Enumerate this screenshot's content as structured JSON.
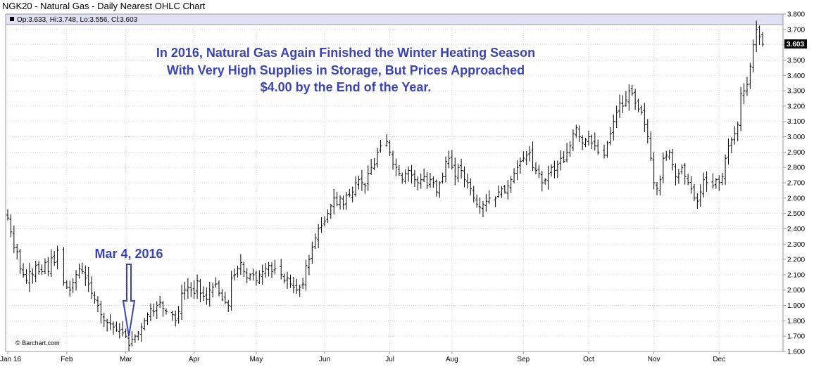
{
  "chart_title": "NGK20 - Natural Gas - Daily Nearest OHLC Chart",
  "legend": "Op:3.633, Hi:3.748, Lo:3.556, Cl:3.603",
  "last_price_label": "3.603",
  "credit": "© Barchart.com",
  "annotation": {
    "lines": [
      "In 2016, Natural Gas Again Finished the Winter Heating Season",
      "With Very High Supplies in Storage, But Prices Approached",
      "$4.00 by the End of the Year."
    ],
    "marker_label": "Mar 4, 2016"
  },
  "colors": {
    "bars": "#000000",
    "annotation": "#3a44b8",
    "header_band": "#e1e1f4",
    "grid": "#d7d7d7"
  },
  "chart_data": {
    "type": "ohlc",
    "title": "NGK20 - Natural Gas - Daily Nearest OHLC Chart",
    "ylim": [
      1.6,
      3.8
    ],
    "y_ticks": [
      "1.600",
      "1.700",
      "1.800",
      "1.900",
      "2.000",
      "2.100",
      "2.200",
      "2.300",
      "2.400",
      "2.500",
      "2.600",
      "2.700",
      "2.800",
      "2.900",
      "3.000",
      "3.100",
      "3.200",
      "3.300",
      "3.400",
      "3.500",
      "3.600",
      "3.700",
      "3.800"
    ],
    "x_ticks": [
      "Jan 16",
      "Feb",
      "Mar",
      "Apr",
      "May",
      "Jun",
      "Jul",
      "Aug",
      "Sep",
      "Oct",
      "Nov",
      "Dec"
    ],
    "month_start_index": [
      0,
      19,
      38,
      60,
      80,
      102,
      123,
      143,
      166,
      187,
      208,
      229
    ],
    "total_bars": 244,
    "closes": [
      2.47,
      2.38,
      2.28,
      2.25,
      2.14,
      2.1,
      2.06,
      2.12,
      2.1,
      2.16,
      2.12,
      2.12,
      2.18,
      2.12,
      2.21,
      2.18,
      2.26,
      2.05,
      2.02,
      2.0,
      2.05,
      2.1,
      2.14,
      2.12,
      2.08,
      2.04,
      1.98,
      1.94,
      1.9,
      1.84,
      1.8,
      1.79,
      1.78,
      1.76,
      1.74,
      1.74,
      1.72,
      1.7,
      1.64,
      1.68,
      1.7,
      1.72,
      1.76,
      1.8,
      1.84,
      1.88,
      1.86,
      1.9,
      1.92,
      1.88,
      1.86,
      1.84,
      1.8,
      1.86,
      1.98,
      2.0,
      2.02,
      2.0,
      1.98,
      2.06,
      1.98,
      1.96,
      1.94,
      2.0,
      2.02,
      2.04,
      1.98,
      1.94,
      1.92,
      1.9,
      2.08,
      2.1,
      2.14,
      2.18,
      2.12,
      2.08,
      2.1,
      2.1,
      2.06,
      2.1,
      2.12,
      2.14,
      2.16,
      2.12,
      2.14,
      2.1,
      2.06,
      2.08,
      2.04,
      2.02,
      2.0,
      2.02,
      2.04,
      2.16,
      2.2,
      2.28,
      2.34,
      2.4,
      2.42,
      2.45,
      2.5,
      2.55,
      2.6,
      2.56,
      2.6,
      2.56,
      2.62,
      2.62,
      2.64,
      2.7,
      2.72,
      2.7,
      2.68,
      2.76,
      2.8,
      2.82,
      2.9,
      2.94,
      2.97,
      2.9,
      2.82,
      2.8,
      2.76,
      2.72,
      2.76,
      2.78,
      2.75,
      2.72,
      2.7,
      2.72,
      2.74,
      2.68,
      2.72,
      2.7,
      2.64,
      2.7,
      2.74,
      2.84,
      2.86,
      2.8,
      2.74,
      2.8,
      2.78,
      2.72,
      2.7,
      2.66,
      2.6,
      2.56,
      2.54,
      2.56,
      2.58,
      2.6,
      2.6,
      2.64,
      2.66,
      2.64,
      2.68,
      2.72,
      2.76,
      2.8,
      2.84,
      2.86,
      2.88,
      2.9,
      2.8,
      2.78,
      2.76,
      2.7,
      2.72,
      2.76,
      2.8,
      2.78,
      2.82,
      2.86,
      2.84,
      2.9,
      2.94,
      3.02,
      3.06,
      3.0,
      2.96,
      2.98,
      3.0,
      2.96,
      2.94,
      2.9,
      2.88,
      2.96,
      3.02,
      3.1,
      3.16,
      3.22,
      3.2,
      3.24,
      3.3,
      3.28,
      3.22,
      3.18,
      3.16,
      3.08,
      3.0,
      2.86,
      2.7,
      2.66,
      2.72,
      2.86,
      2.88,
      2.9,
      2.82,
      2.74,
      2.76,
      2.8,
      2.74,
      2.7,
      2.66,
      2.6,
      2.58,
      2.64,
      2.72,
      2.7,
      2.68,
      2.72,
      2.7,
      2.74,
      2.86,
      2.94,
      2.98,
      3.02,
      3.08,
      3.28,
      3.3,
      3.34,
      3.46,
      3.6,
      3.7,
      3.65,
      3.603
    ]
  }
}
